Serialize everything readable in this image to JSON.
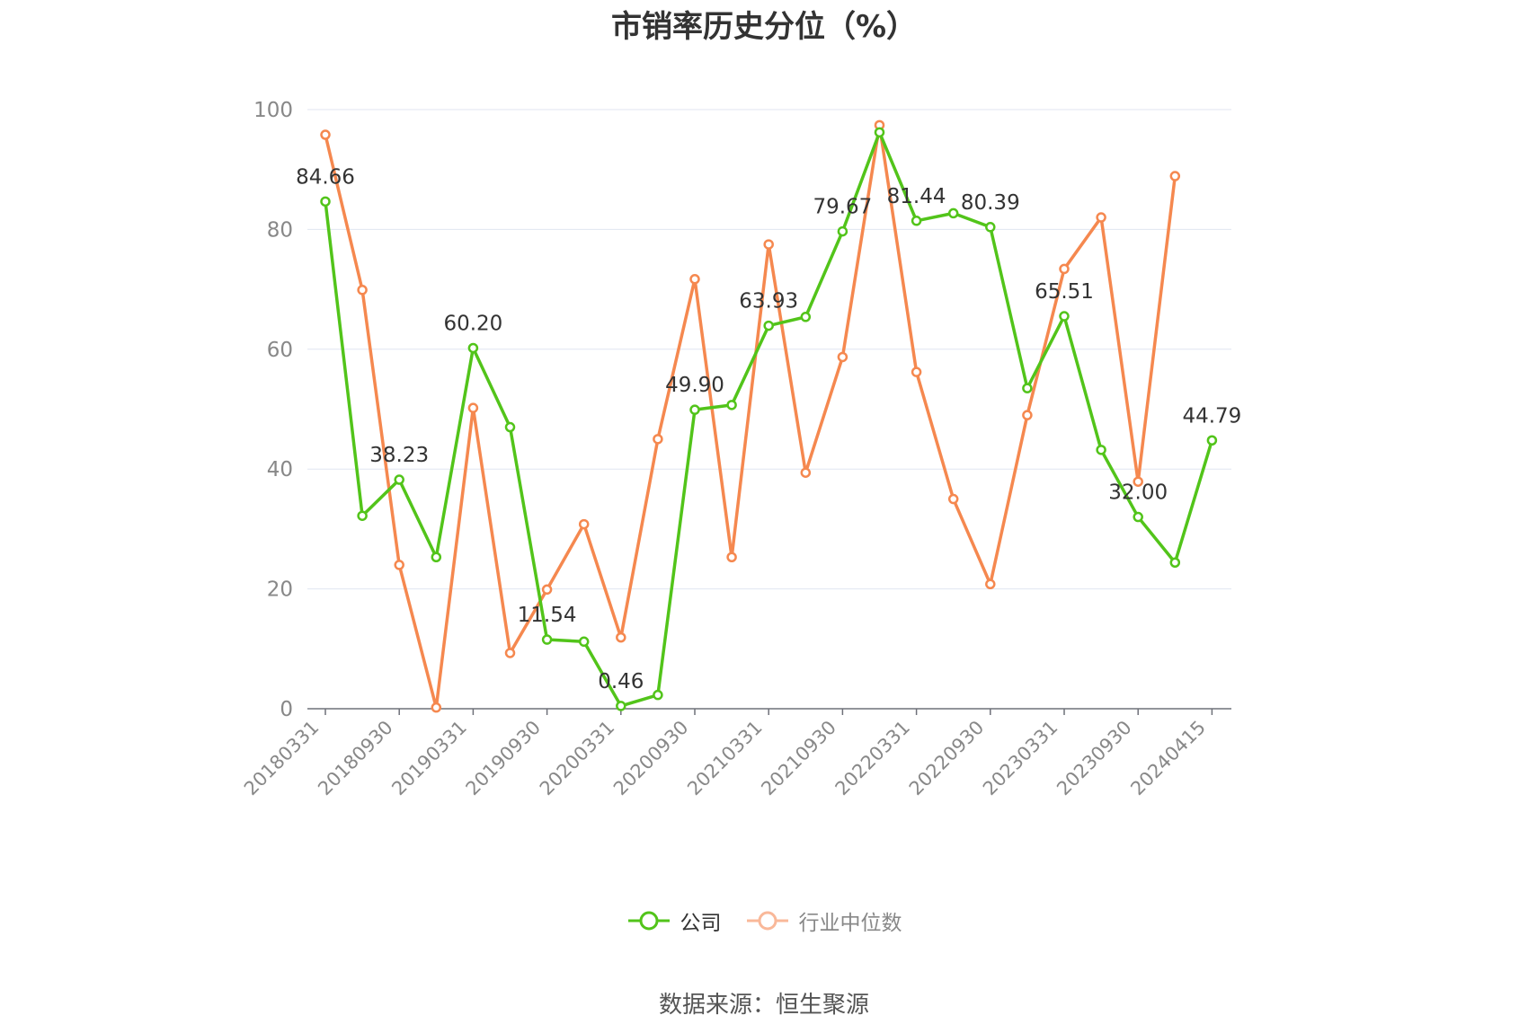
{
  "chart_data": {
    "type": "line",
    "title": "市销率历史分位（%）",
    "source": "数据来源：恒生聚源",
    "ylim": [
      0,
      100
    ],
    "y_ticks": [
      "0",
      "20",
      "40",
      "60",
      "80",
      "100"
    ],
    "x_tick_labels": [
      "20180331",
      "20180930",
      "20190331",
      "20190930",
      "20200331",
      "20200930",
      "20210331",
      "20210930",
      "20220331",
      "20220930",
      "20230331",
      "20230930",
      "20240415"
    ],
    "grid": true,
    "legend_position": "bottom",
    "series": [
      {
        "name": "公司",
        "color": "#52c41a",
        "values": [
          84.66,
          32.2,
          38.23,
          25.3,
          60.2,
          47.0,
          11.54,
          11.2,
          0.46,
          2.3,
          49.9,
          50.7,
          63.93,
          65.4,
          79.67,
          96.2,
          81.44,
          82.7,
          80.39,
          53.5,
          65.51,
          43.2,
          32.0,
          24.4,
          44.79
        ],
        "labels": [
          "84.66",
          null,
          "38.23",
          null,
          "60.20",
          null,
          "11.54",
          null,
          "0.46",
          null,
          "49.90",
          null,
          "63.93",
          null,
          "79.67",
          null,
          "81.44",
          null,
          "80.39",
          null,
          "65.51",
          null,
          "32.00",
          null,
          "44.79"
        ]
      },
      {
        "name": "行业中位数",
        "color": "#f5884f",
        "values": [
          95.8,
          69.9,
          24.0,
          0.2,
          50.2,
          9.3,
          19.9,
          30.8,
          11.9,
          45.0,
          71.7,
          25.3,
          77.5,
          39.4,
          58.7,
          97.4,
          56.2,
          35.0,
          20.8,
          49.0,
          73.4,
          82.0,
          37.9,
          88.9
        ]
      }
    ]
  }
}
